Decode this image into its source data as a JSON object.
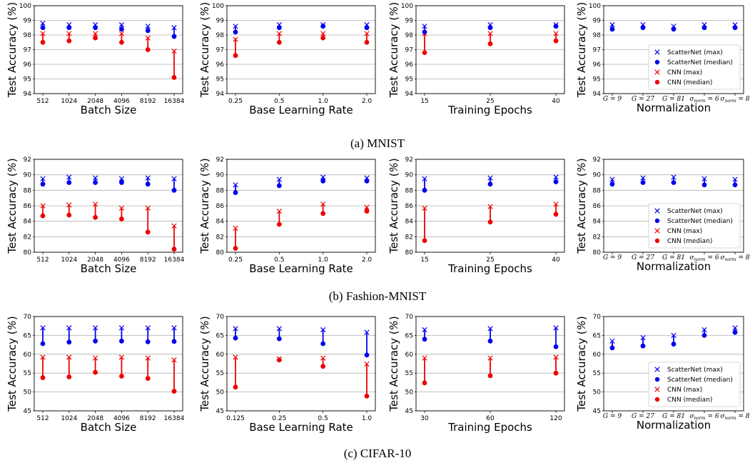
{
  "colors": {
    "scatternet": "#0000ee",
    "cnn": "#ee0000",
    "grid": "#b0b0b0"
  },
  "legend": {
    "entries": [
      {
        "label": "ScatterNet (max)",
        "marker": "x",
        "color": "#0000ee"
      },
      {
        "label": "ScatterNet (median)",
        "marker": "o",
        "color": "#0000ee"
      },
      {
        "label": "CNN (max)",
        "marker": "x",
        "color": "#ee0000"
      },
      {
        "label": "CNN (median)",
        "marker": "o",
        "color": "#ee0000"
      }
    ]
  },
  "captions": [
    "(a) MNIST",
    "(b) Fashion-MNIST",
    "(c) CIFAR-10"
  ],
  "ylabel_parts": {
    "text": "Test Accuracy (",
    "unit": "%",
    "close": ")"
  },
  "chart_data": [
    {
      "type": "scatter",
      "row": 0,
      "col": 0,
      "xlabel": "Batch Size",
      "ylim": [
        94,
        100
      ],
      "yticks": [
        94,
        95,
        96,
        97,
        98,
        99,
        100
      ],
      "categories": [
        "512",
        "1024",
        "2048",
        "4096",
        "8192",
        "16384"
      ],
      "sn_max": [
        98.8,
        98.7,
        98.7,
        98.7,
        98.6,
        98.5
      ],
      "sn_med": [
        98.5,
        98.5,
        98.5,
        98.4,
        98.3,
        97.9
      ],
      "cnn_max": [
        98.1,
        98.1,
        98.1,
        98.1,
        97.8,
        96.9
      ],
      "cnn_med": [
        97.5,
        97.6,
        97.8,
        97.5,
        97.0,
        95.1
      ]
    },
    {
      "type": "scatter",
      "row": 0,
      "col": 1,
      "xlabel": "Base Learning Rate",
      "ylim": [
        94,
        100
      ],
      "yticks": [
        94,
        95,
        96,
        97,
        98,
        99,
        100
      ],
      "categories": [
        "0.25",
        "0.5",
        "1.0",
        "2.0"
      ],
      "sn_max": [
        98.6,
        98.7,
        98.7,
        98.7
      ],
      "sn_med": [
        98.2,
        98.5,
        98.6,
        98.5
      ],
      "cnn_max": [
        97.7,
        98.1,
        98.1,
        98.1
      ],
      "cnn_med": [
        96.6,
        97.5,
        97.8,
        97.5
      ]
    },
    {
      "type": "scatter",
      "row": 0,
      "col": 2,
      "xlabel": "Training Epochs",
      "ylim": [
        94,
        100
      ],
      "yticks": [
        94,
        95,
        96,
        97,
        98,
        99,
        100
      ],
      "categories": [
        "15",
        "25",
        "40"
      ],
      "sn_max": [
        98.6,
        98.7,
        98.7
      ],
      "sn_med": [
        98.2,
        98.5,
        98.6
      ],
      "cnn_max": [
        98.1,
        98.1,
        98.1
      ],
      "cnn_med": [
        96.8,
        97.4,
        97.6
      ]
    },
    {
      "type": "scatter",
      "row": 0,
      "col": 3,
      "xlabel": "Normalization",
      "ylim": [
        94,
        100
      ],
      "yticks": [
        94,
        95,
        96,
        97,
        98,
        99,
        100
      ],
      "legend": true,
      "categories": [
        "G = 9",
        "G = 27",
        "G = 81",
        "σnorm = 6",
        "σnorm = 8"
      ],
      "sn_max": [
        98.7,
        98.7,
        98.6,
        98.7,
        98.7
      ],
      "sn_med": [
        98.4,
        98.5,
        98.4,
        98.5,
        98.5
      ],
      "cnn_max": [],
      "cnn_med": []
    },
    {
      "type": "scatter",
      "row": 1,
      "col": 0,
      "xlabel": "Batch Size",
      "ylim": [
        80,
        92
      ],
      "yticks": [
        80,
        82,
        84,
        86,
        88,
        90,
        92
      ],
      "categories": [
        "512",
        "1024",
        "2048",
        "4096",
        "8192",
        "16384"
      ],
      "sn_max": [
        89.5,
        89.7,
        89.6,
        89.5,
        89.6,
        89.5
      ],
      "sn_med": [
        88.8,
        89.0,
        89.0,
        89.0,
        88.8,
        88.0
      ],
      "cnn_max": [
        86.0,
        86.1,
        86.2,
        85.7,
        85.7,
        83.4
      ],
      "cnn_med": [
        84.7,
        84.8,
        84.5,
        84.3,
        82.6,
        80.4
      ]
    },
    {
      "type": "scatter",
      "row": 1,
      "col": 1,
      "xlabel": "Base Learning Rate",
      "ylim": [
        80,
        92
      ],
      "yticks": [
        80,
        82,
        84,
        86,
        88,
        90,
        92
      ],
      "categories": [
        "0.25",
        "0.5",
        "1.0",
        "2.0"
      ],
      "sn_max": [
        88.7,
        89.4,
        89.7,
        89.6
      ],
      "sn_med": [
        87.7,
        88.6,
        89.2,
        89.2
      ],
      "cnn_max": [
        83.1,
        85.3,
        86.2,
        85.8
      ],
      "cnn_med": [
        80.5,
        83.6,
        85.0,
        85.3
      ]
    },
    {
      "type": "scatter",
      "row": 1,
      "col": 2,
      "xlabel": "Training Epochs",
      "ylim": [
        80,
        92
      ],
      "yticks": [
        80,
        82,
        84,
        86,
        88,
        90,
        92
      ],
      "categories": [
        "15",
        "25",
        "40"
      ],
      "sn_max": [
        89.5,
        89.6,
        89.7
      ],
      "sn_med": [
        88.0,
        88.8,
        89.1
      ],
      "cnn_max": [
        85.7,
        85.9,
        86.2
      ],
      "cnn_med": [
        81.5,
        83.9,
        84.9
      ]
    },
    {
      "type": "scatter",
      "row": 1,
      "col": 3,
      "xlabel": "Normalization",
      "ylim": [
        80,
        92
      ],
      "yticks": [
        80,
        82,
        84,
        86,
        88,
        90,
        92
      ],
      "legend": true,
      "categories": [
        "G = 9",
        "G = 27",
        "G = 81",
        "σnorm = 6",
        "σnorm = 8"
      ],
      "sn_max": [
        89.4,
        89.6,
        89.7,
        89.5,
        89.4
      ],
      "sn_med": [
        88.8,
        89.0,
        89.0,
        88.7,
        88.7
      ],
      "cnn_max": [],
      "cnn_med": []
    },
    {
      "type": "scatter",
      "row": 2,
      "col": 0,
      "xlabel": "Batch Size",
      "ylim": [
        45,
        70
      ],
      "yticks": [
        45,
        50,
        55,
        60,
        65,
        70
      ],
      "categories": [
        "512",
        "1024",
        "2048",
        "4096",
        "8192",
        "16384"
      ],
      "sn_max": [
        67.0,
        67.0,
        67.0,
        67.0,
        67.0,
        67.0
      ],
      "sn_med": [
        62.8,
        63.2,
        63.5,
        63.5,
        63.3,
        63.4
      ],
      "cnn_max": [
        59.2,
        59.2,
        59.0,
        59.2,
        59.0,
        58.5
      ],
      "cnn_med": [
        53.8,
        54.0,
        55.2,
        54.2,
        53.6,
        50.2
      ]
    },
    {
      "type": "scatter",
      "row": 2,
      "col": 1,
      "xlabel": "Base Learning Rate",
      "ylim": [
        45,
        70
      ],
      "yticks": [
        45,
        50,
        55,
        60,
        65,
        70
      ],
      "categories": [
        "0.125",
        "0.25",
        "0.5",
        "1.0"
      ],
      "sn_max": [
        66.8,
        66.8,
        66.5,
        65.8
      ],
      "sn_med": [
        64.3,
        64.1,
        62.8,
        59.8
      ],
      "cnn_max": [
        59.2,
        58.8,
        59.0,
        57.4
      ],
      "cnn_med": [
        51.3,
        58.5,
        56.8,
        48.9
      ]
    },
    {
      "type": "scatter",
      "row": 2,
      "col": 2,
      "xlabel": "Training Epochs",
      "ylim": [
        45,
        70
      ],
      "yticks": [
        45,
        50,
        55,
        60,
        65,
        70
      ],
      "categories": [
        "30",
        "60",
        "120"
      ],
      "sn_max": [
        66.5,
        66.8,
        67.0
      ],
      "sn_med": [
        64.0,
        63.5,
        62.0
      ],
      "cnn_max": [
        59.0,
        59.0,
        59.2
      ],
      "cnn_med": [
        52.4,
        54.3,
        55.0
      ]
    },
    {
      "type": "scatter",
      "row": 2,
      "col": 3,
      "xlabel": "Normalization",
      "ylim": [
        45,
        70
      ],
      "yticks": [
        45,
        50,
        55,
        60,
        65,
        70
      ],
      "legend": true,
      "categories": [
        "G = 9",
        "G = 27",
        "G = 81",
        "σnorm = 6",
        "σnorm = 8"
      ],
      "sn_max": [
        63.5,
        64.4,
        65.0,
        66.5,
        67.0
      ],
      "sn_med": [
        61.7,
        62.2,
        62.7,
        65.0,
        65.8
      ],
      "cnn_max": [],
      "cnn_med": []
    }
  ]
}
